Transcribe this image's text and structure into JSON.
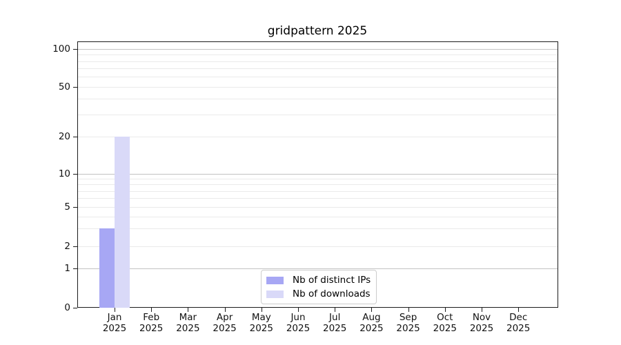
{
  "chart_data": {
    "type": "bar",
    "title": "gridpattern 2025",
    "categories": [
      "Jan",
      "Feb",
      "Mar",
      "Apr",
      "May",
      "Jun",
      "Jul",
      "Aug",
      "Sep",
      "Oct",
      "Nov",
      "Dec"
    ],
    "category_year": "2025",
    "series": [
      {
        "name": "Nb of distinct IPs",
        "color": "#a7a7f4",
        "values": [
          3,
          0,
          0,
          0,
          0,
          0,
          0,
          0,
          0,
          0,
          0,
          0
        ]
      },
      {
        "name": "Nb of downloads",
        "color": "#d9d9f8",
        "values": [
          20,
          0,
          0,
          0,
          0,
          0,
          0,
          0,
          0,
          0,
          0,
          0
        ]
      }
    ],
    "y_axis": {
      "ticks": [
        0,
        1,
        2,
        5,
        10,
        20,
        50,
        100
      ],
      "scale": "log-like",
      "major_gridline_values": [
        1,
        10,
        100
      ],
      "minor_gridline_values": [
        2,
        3,
        4,
        5,
        6,
        7,
        8,
        9,
        20,
        30,
        40,
        50,
        60,
        70,
        80,
        90
      ],
      "ylim": [
        0,
        115
      ]
    },
    "legend": {
      "position": "lower center"
    },
    "grid": true,
    "xlabel": "",
    "ylabel": ""
  },
  "colors": {
    "background": "#ffffff",
    "spine": "#1a1a1a",
    "major_grid": "#c2c2c2",
    "minor_grid": "#eaeaea"
  }
}
